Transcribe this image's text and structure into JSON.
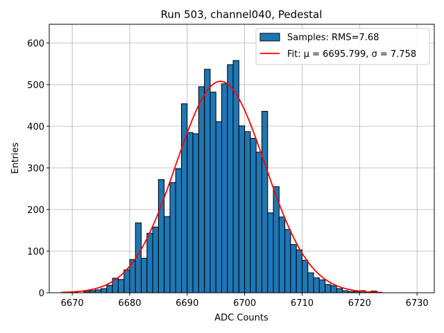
{
  "chart_data": {
    "type": "bar",
    "title": "Run 503, channel040, Pedestal",
    "xlabel": "ADC Counts",
    "ylabel": "Entries",
    "xlim": [
      6666,
      6733
    ],
    "ylim": [
      0,
      645
    ],
    "xticks": [
      6670,
      6680,
      6690,
      6700,
      6710,
      6720,
      6730
    ],
    "yticks": [
      0,
      100,
      200,
      300,
      400,
      500,
      600
    ],
    "grid": true,
    "legend_position": "top-right",
    "bin_width": 1,
    "series": [
      {
        "name": "Samples: RMS=7.68",
        "kind": "histogram",
        "color": "#1f77b4",
        "edge_color": "#000000",
        "x": [
          6670,
          6671,
          6672,
          6673,
          6674,
          6675,
          6676,
          6677,
          6678,
          6679,
          6680,
          6681,
          6682,
          6683,
          6684,
          6685,
          6686,
          6687,
          6688,
          6689,
          6690,
          6691,
          6692,
          6693,
          6694,
          6695,
          6696,
          6697,
          6698,
          6699,
          6700,
          6701,
          6702,
          6703,
          6704,
          6705,
          6706,
          6707,
          6708,
          6709,
          6710,
          6711,
          6712,
          6713,
          6714,
          6715,
          6716,
          6717,
          6718,
          6719,
          6720,
          6721,
          6722
        ],
        "values": [
          1,
          0,
          3,
          5,
          7,
          10,
          18,
          35,
          32,
          55,
          80,
          168,
          83,
          143,
          158,
          272,
          183,
          265,
          298,
          454,
          385,
          382,
          495,
          537,
          482,
          411,
          502,
          548,
          558,
          401,
          387,
          371,
          338,
          436,
          192,
          255,
          182,
          152,
          116,
          103,
          78,
          48,
          36,
          31,
          20,
          17,
          10,
          5,
          3,
          3,
          5,
          2,
          4
        ]
      },
      {
        "name": "Fit: μ = 6695.799, σ = 7.758",
        "kind": "line",
        "color": "#ff0000",
        "mu": 6695.799,
        "sigma": 7.758,
        "amplitude": 508,
        "x_range": [
          6668,
          6724
        ]
      }
    ]
  }
}
